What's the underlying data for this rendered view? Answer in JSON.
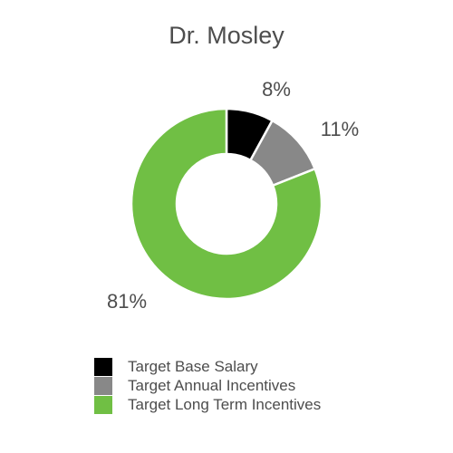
{
  "chart_data": {
    "type": "pie",
    "title": "Dr. Mosley",
    "categories": [
      "Target Base Salary",
      "Target Annual Incentives",
      "Target Long Term Incentives"
    ],
    "values": [
      8,
      11,
      81
    ],
    "value_labels": [
      "8%",
      "11%",
      "81%"
    ],
    "colors": [
      "#000000",
      "#888888",
      "#70bf44"
    ],
    "donut": true,
    "legend_position": "bottom"
  }
}
